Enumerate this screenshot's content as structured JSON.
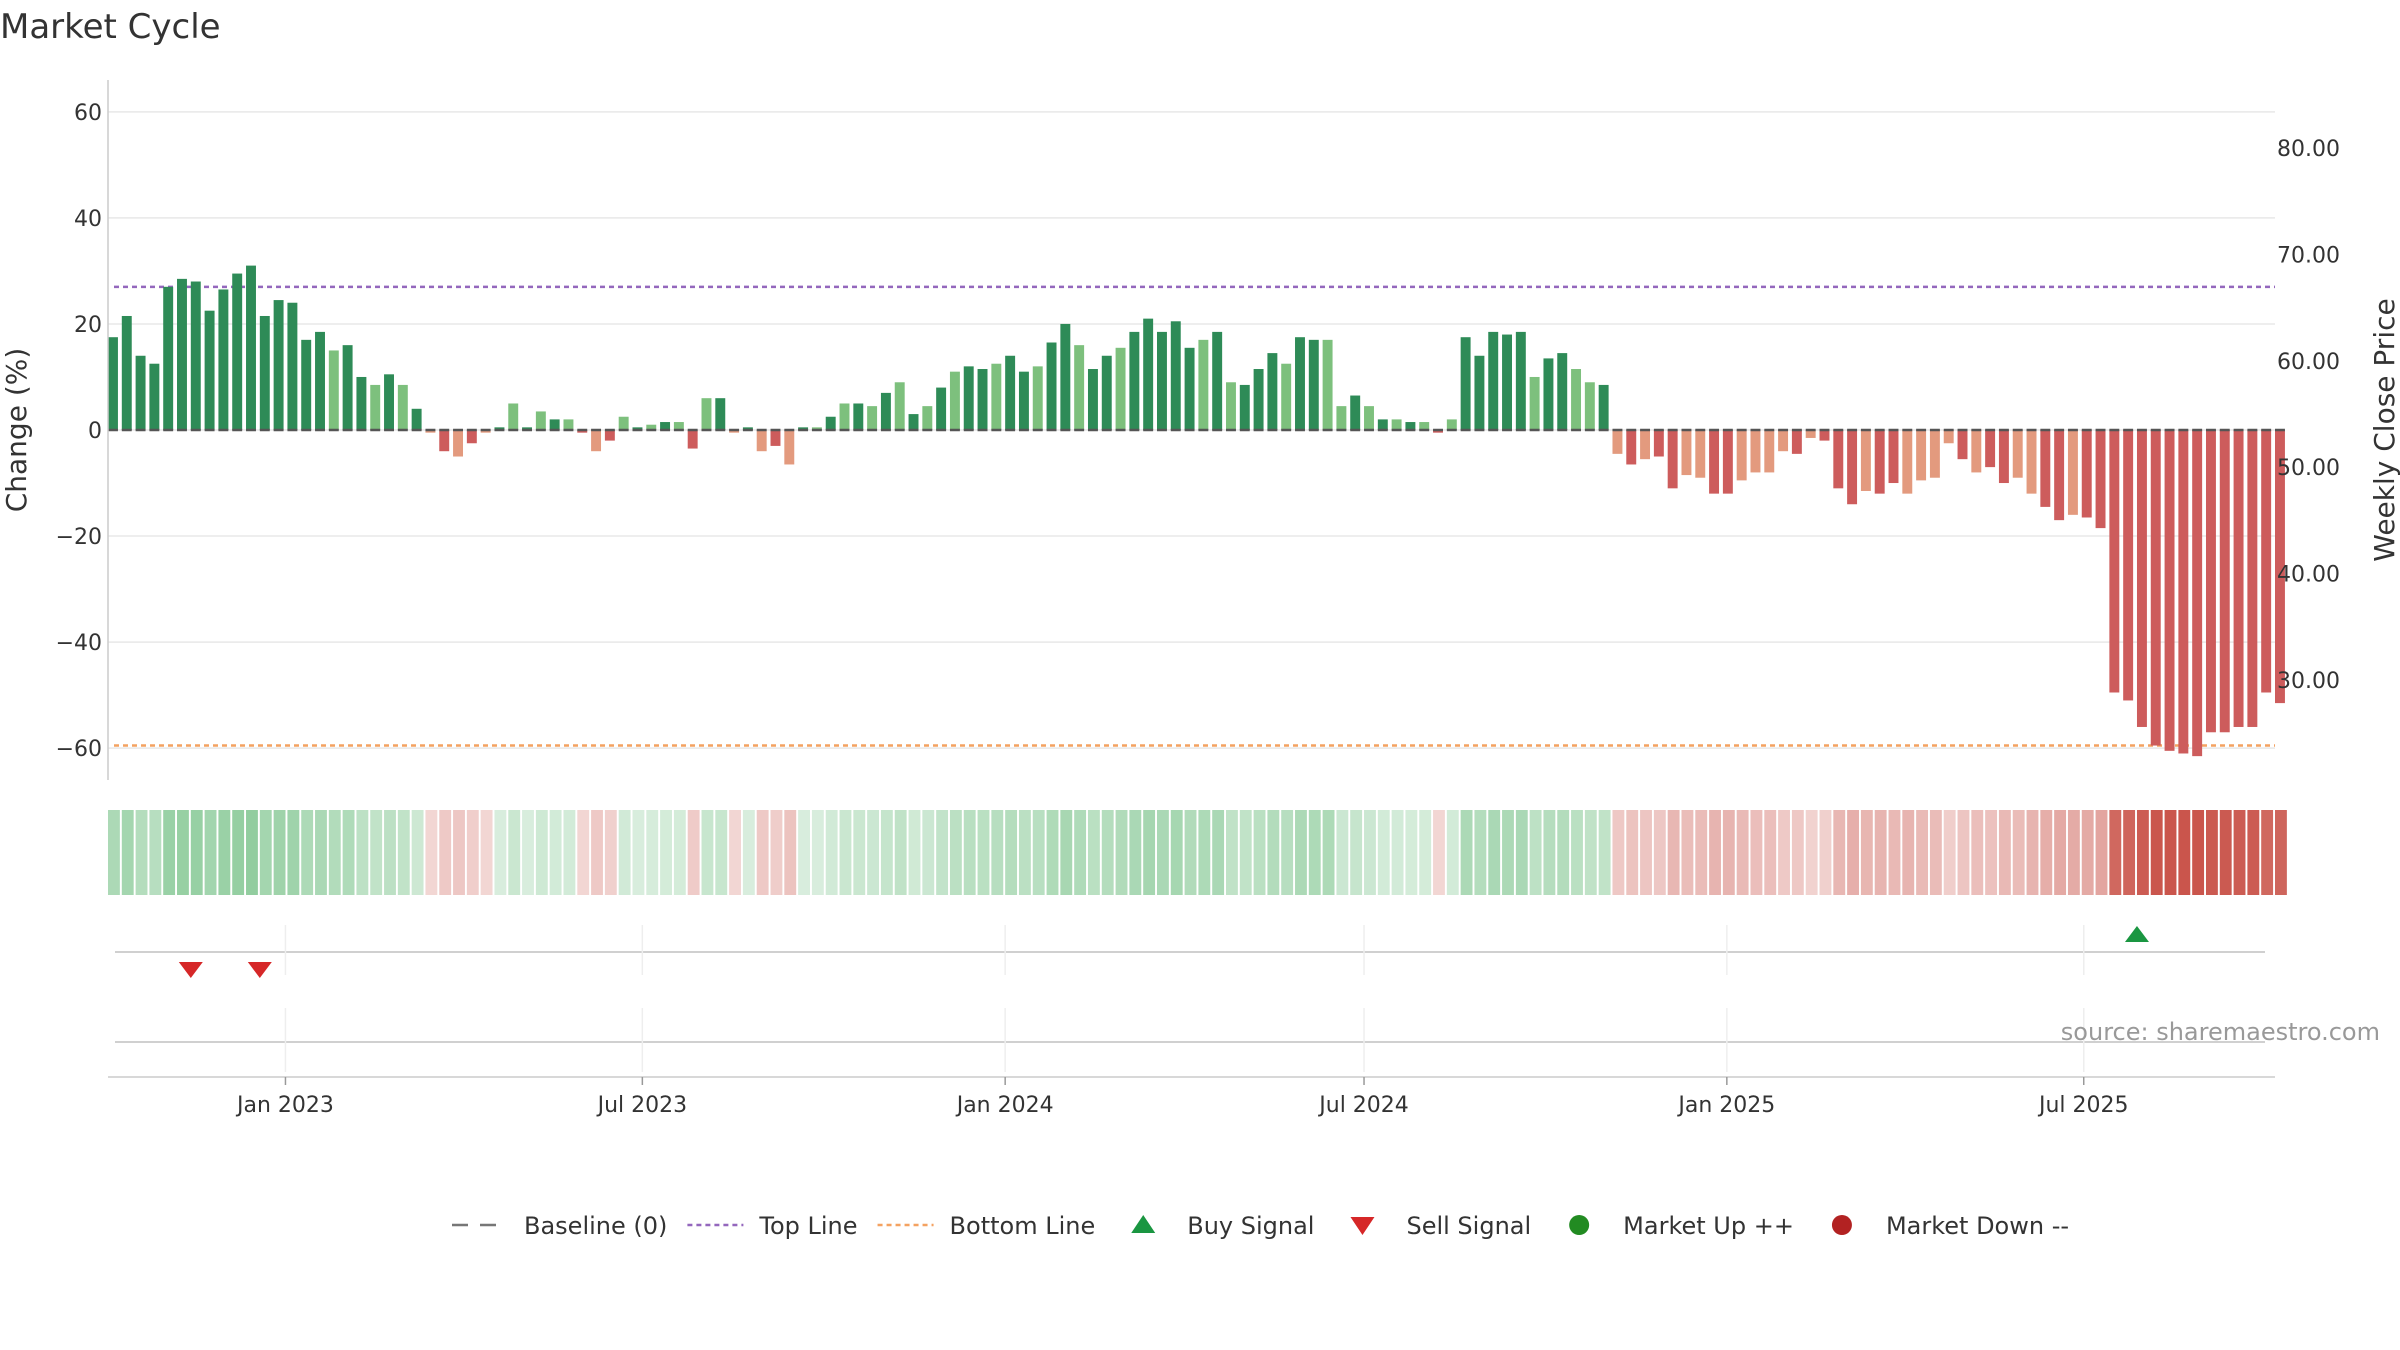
{
  "chart_data": {
    "type": "bar",
    "title": "Market Cycle",
    "ylabel": "Change (%)",
    "ylabel_right": "Weekly Close Price",
    "ylim": [
      -66,
      66
    ],
    "y_ticks": [
      60,
      40,
      20,
      0,
      -20,
      -40,
      -60
    ],
    "y_tick_labels": [
      "60",
      "40",
      "20",
      "0",
      "−20",
      "−40",
      "−60"
    ],
    "right_ylim": [
      20.6,
      86.4
    ],
    "right_ticks": [
      80,
      70,
      60,
      50,
      40,
      30
    ],
    "right_tick_labels": [
      "80.00",
      "70.00",
      "60.00",
      "50.00",
      "40.00",
      "30.00"
    ],
    "top_line": 27,
    "bottom_line": -59.5,
    "baseline": 0,
    "x_start": "2022-10-03",
    "x_end": "2025-10-06",
    "x_ticks": [
      "2023-01-01",
      "2023-07-01",
      "2024-01-01",
      "2024-07-01",
      "2025-01-01",
      "2025-07-01"
    ],
    "x_tick_labels": [
      "Jan 2023",
      "Jul 2023",
      "Jan 2024",
      "Jul 2024",
      "Jan 2025",
      "Jul 2025"
    ],
    "week_start": "2022-10-03",
    "values": [
      17.5,
      21.5,
      14,
      12.5,
      27,
      28.5,
      28,
      22.5,
      26.5,
      29.5,
      31,
      21.5,
      24.5,
      24,
      17,
      18.5,
      15,
      16,
      10,
      8.5,
      10.5,
      8.5,
      4,
      -0.5,
      -4,
      -5,
      -2.5,
      -0.5,
      0.5,
      5,
      0.5,
      3.5,
      2,
      2,
      -0.5,
      -4,
      -2,
      2.5,
      0.5,
      1,
      1.5,
      1.5,
      -3.5,
      6,
      6,
      -0.5,
      0.5,
      -4,
      -3,
      -6.5,
      0.5,
      0.5,
      2.5,
      5,
      5,
      4.5,
      7,
      9,
      3,
      4.5,
      8,
      11,
      12,
      11.5,
      12.5,
      14,
      11,
      12,
      16.5,
      20,
      16,
      11.5,
      14,
      15.5,
      18.5,
      21,
      18.5,
      20.5,
      15.5,
      17,
      18.5,
      9,
      8.5,
      11.5,
      14.5,
      12.5,
      17.5,
      17,
      17,
      4.5,
      6.5,
      4.5,
      2,
      2,
      1.5,
      1.5,
      -0.5,
      2,
      17.5,
      14,
      18.5,
      18,
      18.5,
      10,
      13.5,
      14.5,
      11.5,
      9,
      8.5,
      -4.5,
      -6.5,
      -5.5,
      -5,
      -11,
      -8.5,
      -9,
      -12,
      -12,
      -9.5,
      -8,
      -8,
      -4,
      -4.5,
      -1.5,
      -2,
      -11,
      -14,
      -11.5,
      -12,
      -10,
      -12,
      -9.5,
      -9,
      -2.5,
      -5.5,
      -8,
      -7,
      -10,
      -9,
      -12,
      -14.5,
      -17,
      -16,
      -16.5,
      -18.5,
      -49.5,
      -51,
      -56,
      -59.5,
      -60.5,
      -61,
      -61.5,
      -57,
      -57,
      -56,
      -56,
      -49.5,
      -51.5
    ],
    "series": [
      {
        "name": "Baseline (0)",
        "values": [
          0
        ]
      },
      {
        "name": "Top Line",
        "values": [
          27
        ]
      },
      {
        "name": "Bottom Line",
        "values": [
          -59.5
        ]
      }
    ],
    "sell_signals": [
      "2022-11-14",
      "2022-12-19"
    ],
    "buy_signals": [
      "2025-07-28"
    ],
    "legend": [
      {
        "label": "Baseline (0)",
        "marker": "dash-line",
        "color": "#777777"
      },
      {
        "label": "Top Line",
        "marker": "dotted-line",
        "color": "#9467bd"
      },
      {
        "label": "Bottom Line",
        "marker": "dotted-line",
        "color": "#f4a261"
      },
      {
        "label": "Buy Signal",
        "marker": "triangle-up",
        "color": "#1a9641"
      },
      {
        "label": "Sell Signal",
        "marker": "triangle-down",
        "color": "#d62728"
      },
      {
        "label": "Market Up ++",
        "marker": "circle",
        "color": "#228b22"
      },
      {
        "label": "Market Down --",
        "marker": "circle",
        "color": "#b22222"
      }
    ],
    "legend_position": "bottom-center",
    "grid": true,
    "source": "source: sharemaestro.com"
  },
  "colors": {
    "up_strong": "#2e8b57",
    "up_light": "#7dc07d",
    "down_strong": "#cd5c5c",
    "down_light": "#e39a7e"
  }
}
